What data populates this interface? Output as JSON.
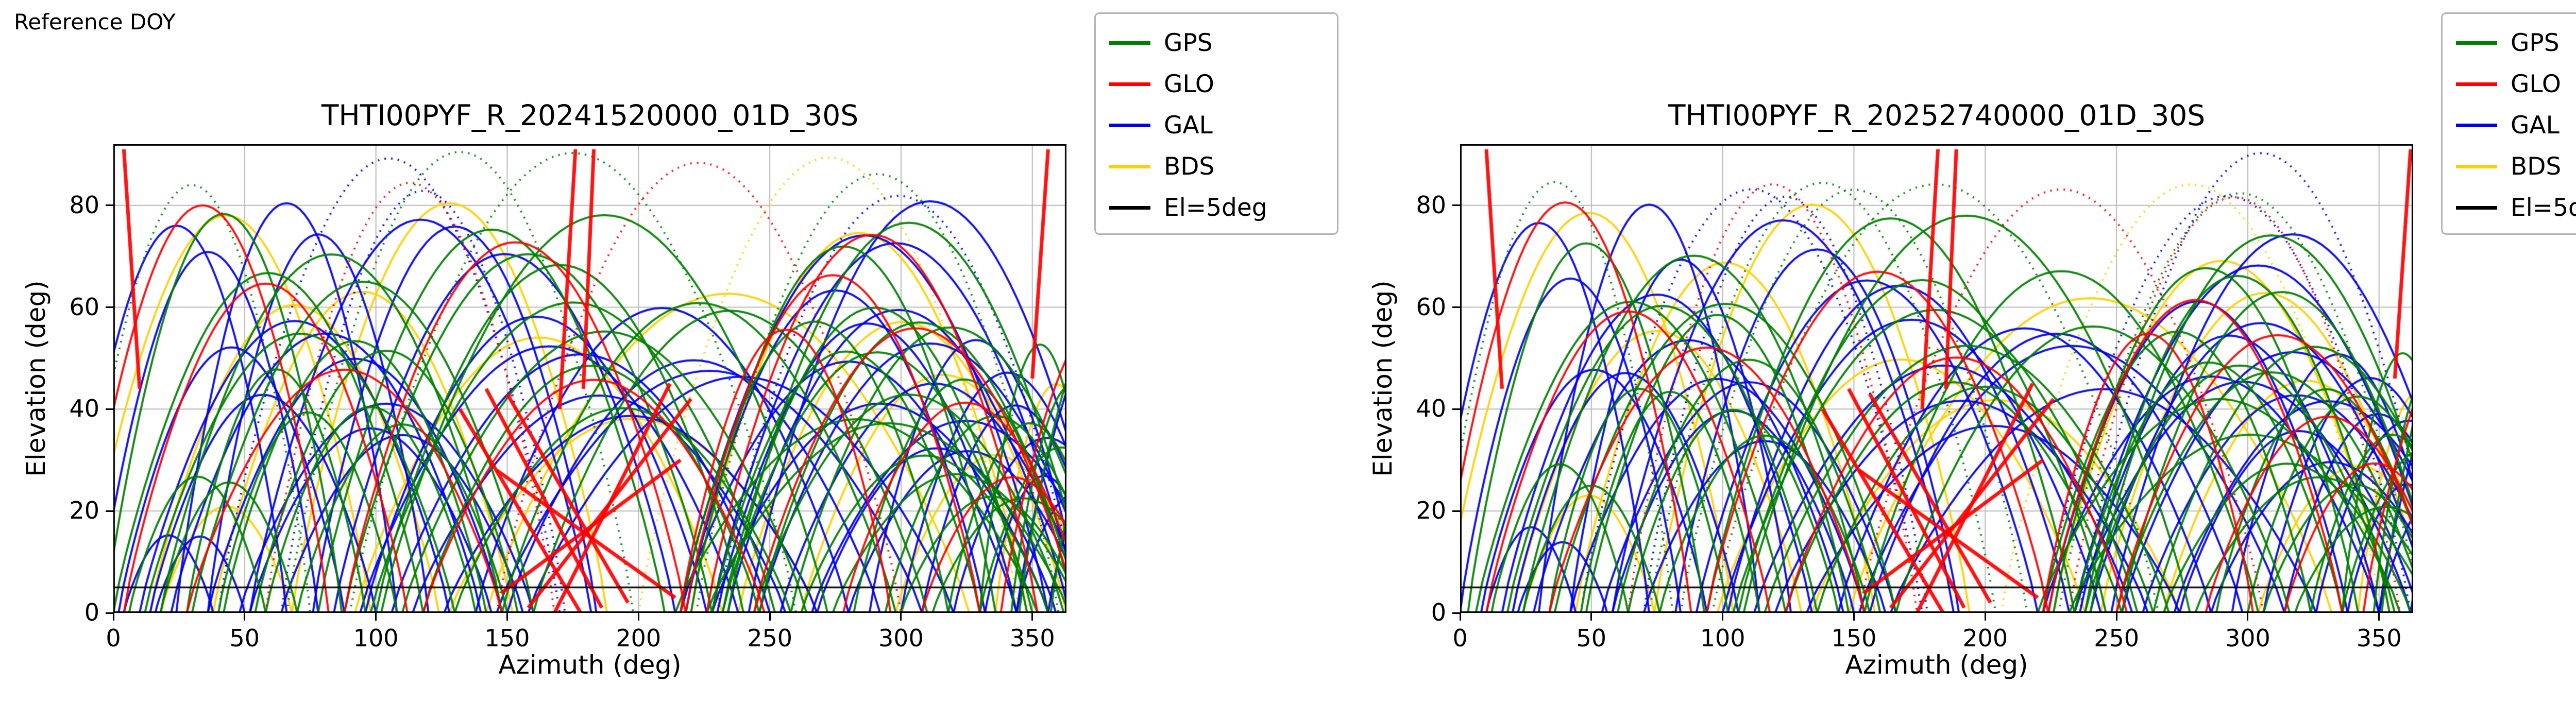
{
  "header": {
    "reference_label": "Reference DOY"
  },
  "colors": {
    "GPS": "#008000",
    "GLO": "#ff0000",
    "GAL": "#0000ee",
    "BDS": "#ffd000",
    "el_line": "#000000",
    "grid": "#b8b8b8"
  },
  "legend": [
    {
      "label": "GPS",
      "color": "#008000"
    },
    {
      "label": "GLO",
      "color": "#ff0000"
    },
    {
      "label": "GAL",
      "color": "#0000ee"
    },
    {
      "label": "BDS",
      "color": "#ffd000"
    },
    {
      "label": "El=5deg",
      "color": "#000000"
    }
  ],
  "passes": {
    "GPS": [
      [
        -15,
        75,
        84
      ],
      [
        0,
        118,
        64
      ],
      [
        6,
        58,
        28
      ],
      [
        18,
        148,
        70
      ],
      [
        28,
        96,
        46
      ],
      [
        42,
        142,
        56
      ],
      [
        58,
        138,
        40
      ],
      [
        66,
        198,
        88
      ],
      [
        88,
        228,
        74
      ],
      [
        98,
        252,
        60
      ],
      [
        118,
        246,
        47
      ],
      [
        148,
        298,
        64
      ],
      [
        216,
        318,
        56
      ],
      [
        220,
        336,
        70
      ],
      [
        214,
        352,
        40
      ],
      [
        222,
        360,
        84
      ],
      [
        232,
        350,
        50
      ],
      [
        246,
        368,
        60
      ],
      [
        262,
        356,
        30
      ],
      [
        282,
        366,
        45
      ],
      [
        300,
        369,
        24
      ],
      [
        318,
        380,
        36
      ],
      [
        330,
        376,
        52
      ],
      [
        345,
        420,
        66
      ],
      [
        90,
        260,
        87
      ]
    ],
    "GAL": [
      [
        -18,
        66,
        76
      ],
      [
        2,
        88,
        50
      ],
      [
        10,
        128,
        60
      ],
      [
        24,
        108,
        80
      ],
      [
        36,
        148,
        48
      ],
      [
        52,
        144,
        38
      ],
      [
        64,
        172,
        82
      ],
      [
        84,
        214,
        68
      ],
      [
        94,
        238,
        55
      ],
      [
        114,
        256,
        42
      ],
      [
        138,
        280,
        58
      ],
      [
        146,
        308,
        50
      ],
      [
        218,
        332,
        62
      ],
      [
        216,
        344,
        48
      ],
      [
        216,
        356,
        78
      ],
      [
        234,
        364,
        58
      ],
      [
        254,
        371,
        44
      ],
      [
        268,
        359,
        34
      ],
      [
        288,
        369,
        52
      ],
      [
        308,
        379,
        40
      ],
      [
        4,
        38,
        16
      ],
      [
        332,
        377,
        26
      ],
      [
        344,
        425,
        60
      ],
      [
        230,
        368,
        86
      ],
      [
        40,
        170,
        86
      ]
    ],
    "BDS": [
      [
        -12,
        98,
        78
      ],
      [
        14,
        124,
        58
      ],
      [
        38,
        152,
        66
      ],
      [
        68,
        188,
        80
      ],
      [
        92,
        232,
        52
      ],
      [
        128,
        268,
        40
      ],
      [
        142,
        326,
        62
      ],
      [
        220,
        348,
        72
      ],
      [
        238,
        363,
        60
      ],
      [
        262,
        370,
        46
      ],
      [
        298,
        374,
        30
      ],
      [
        18,
        68,
        22
      ],
      [
        336,
        382,
        44
      ],
      [
        200,
        345,
        87
      ]
    ],
    "GLO": [
      [
        -14,
        82,
        80
      ],
      [
        4,
        112,
        62
      ],
      [
        28,
        148,
        50
      ],
      [
        58,
        168,
        84
      ],
      [
        88,
        218,
        70
      ],
      [
        118,
        248,
        48
      ],
      [
        216,
        296,
        55
      ],
      [
        218,
        330,
        64
      ],
      [
        226,
        352,
        78
      ],
      [
        244,
        367,
        55
      ],
      [
        278,
        371,
        40
      ],
      [
        308,
        377,
        28
      ],
      [
        338,
        420,
        58
      ],
      [
        146,
        300,
        86
      ]
    ]
  },
  "glo_star": [
    [
      [
        132,
        40
      ],
      [
        178,
        0
      ]
    ],
    [
      [
        142,
        44
      ],
      [
        186,
        1
      ]
    ],
    [
      [
        150,
        43
      ],
      [
        196,
        2
      ]
    ],
    [
      [
        212,
        45
      ],
      [
        168,
        0
      ]
    ],
    [
      [
        220,
        42
      ],
      [
        158,
        1
      ]
    ],
    [
      [
        146,
        28
      ],
      [
        214,
        3
      ]
    ],
    [
      [
        216,
        30
      ],
      [
        148,
        4
      ]
    ],
    [
      [
        176,
        91
      ],
      [
        170,
        40
      ]
    ],
    [
      [
        183,
        91
      ],
      [
        179,
        44
      ]
    ],
    [
      [
        4,
        91
      ],
      [
        10,
        44
      ]
    ],
    [
      [
        356,
        91
      ],
      [
        350,
        46
      ]
    ]
  ],
  "chart_data": [
    {
      "type": "scatter",
      "title": "THTI00PYF_R_20241520000_01D_30S",
      "xlabel": "Azimuth (deg)",
      "ylabel": "Elevation (deg)",
      "series_names": [
        "GPS",
        "GLO",
        "GAL",
        "BDS"
      ],
      "xlim": [
        0,
        363
      ],
      "ylim": [
        0,
        92
      ],
      "xtick_values": [
        0,
        50,
        100,
        150,
        200,
        250,
        300,
        350
      ],
      "xtick_labels": [
        "0",
        "50",
        "100",
        "150",
        "200",
        "250",
        "300",
        "350"
      ],
      "ytick_values": [
        0,
        20,
        40,
        60,
        80
      ],
      "ytick_labels": [
        "0",
        "20",
        "40",
        "60",
        "80"
      ],
      "el_line": 5,
      "grid": true,
      "legend_position": "upper-right-outside",
      "az_shift": 0,
      "seed": 0
    },
    {
      "type": "scatter",
      "title": "THTI00PYF_R_20252740000_01D_30S",
      "xlabel": "Azimuth (deg)",
      "ylabel": "Elevation (deg)",
      "series_names": [
        "GPS",
        "GLO",
        "GAL",
        "BDS"
      ],
      "xlim": [
        0,
        363
      ],
      "ylim": [
        0,
        92
      ],
      "xtick_values": [
        0,
        50,
        100,
        150,
        200,
        250,
        300,
        350
      ],
      "xtick_labels": [
        "0",
        "50",
        "100",
        "150",
        "200",
        "250",
        "300",
        "350"
      ],
      "ytick_values": [
        0,
        20,
        40,
        60,
        80
      ],
      "ytick_labels": [
        "0",
        "20",
        "40",
        "60",
        "80"
      ],
      "el_line": 5,
      "grid": true,
      "legend_position": "upper-right-outside",
      "az_shift": 6,
      "seed": 3
    }
  ]
}
